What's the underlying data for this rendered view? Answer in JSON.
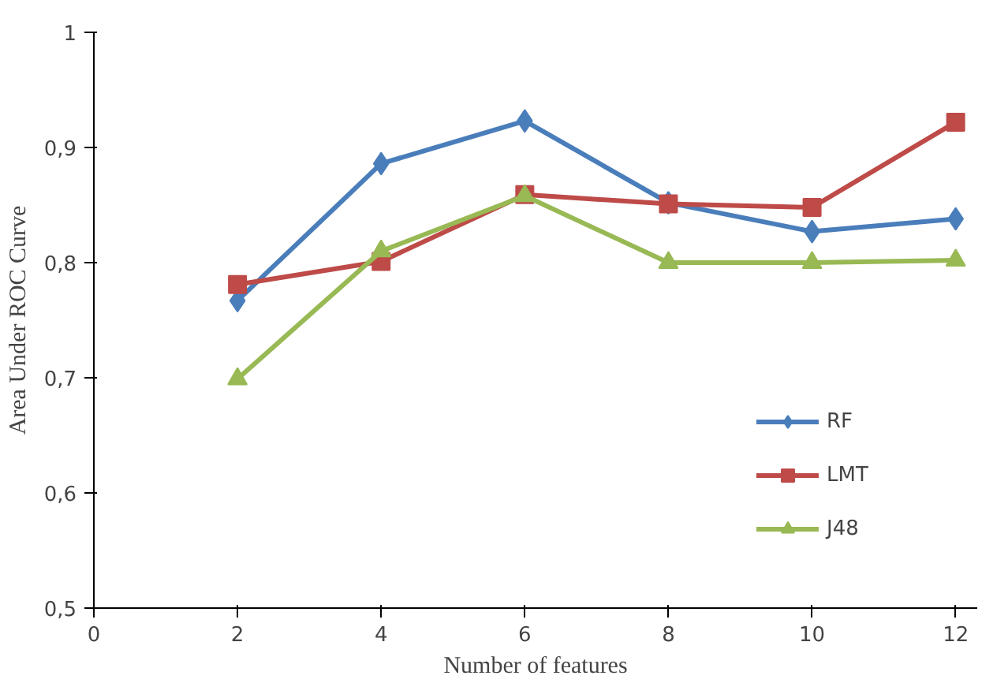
{
  "chart_data": {
    "type": "line",
    "xlabel": "Number of features",
    "ylabel": "Area Under ROC Curve",
    "x": [
      2,
      4,
      6,
      8,
      10,
      12
    ],
    "series": [
      {
        "name": "RF",
        "color": "#4a7ebb",
        "marker": "diamond",
        "values": [
          0.767,
          0.886,
          0.923,
          0.852,
          0.827,
          0.838
        ]
      },
      {
        "name": "LMT",
        "color": "#be4b48",
        "marker": "square",
        "values": [
          0.781,
          0.801,
          0.859,
          0.851,
          0.848,
          0.922
        ]
      },
      {
        "name": "J48",
        "color": "#98b954",
        "marker": "triangle",
        "values": [
          0.699,
          0.81,
          0.858,
          0.8,
          0.8,
          0.802
        ]
      }
    ],
    "xlim": [
      0,
      12.3
    ],
    "ylim": [
      0.5,
      1
    ],
    "xticks": [
      0,
      2,
      4,
      6,
      8,
      10,
      12
    ],
    "yticks": [
      {
        "value": 0.5,
        "label": "0,5"
      },
      {
        "value": 0.6,
        "label": "0,6"
      },
      {
        "value": 0.7,
        "label": "0,7"
      },
      {
        "value": 0.8,
        "label": "0,8"
      },
      {
        "value": 0.9,
        "label": "0,9"
      },
      {
        "value": 1,
        "label": "1"
      }
    ],
    "grid": false,
    "legend": "right",
    "line_style": "solid"
  }
}
